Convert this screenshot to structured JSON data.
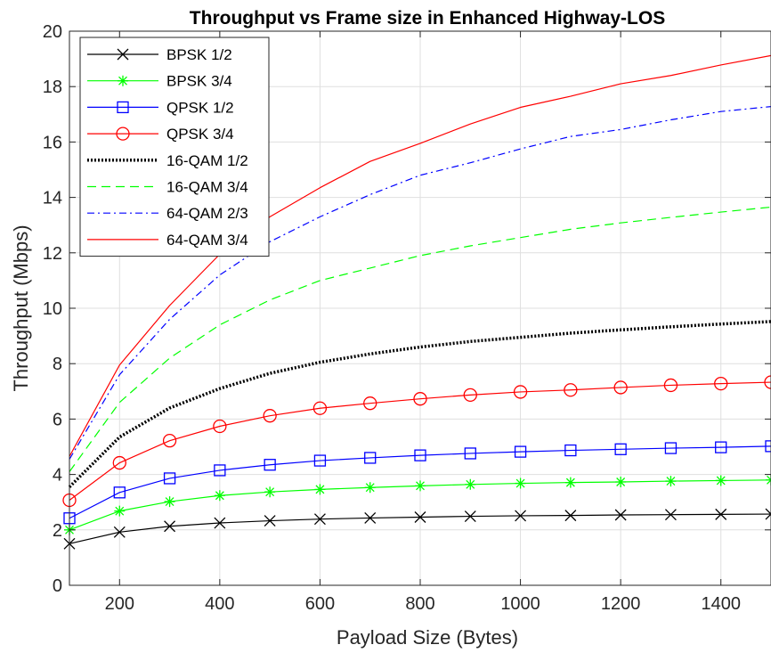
{
  "chart_data": {
    "type": "line",
    "title": "Throughput vs Frame size in Enhanced Highway-LOS",
    "xlabel": "Payload Size (Bytes)",
    "ylabel": "Throughput (Mbps)",
    "xlim": [
      100,
      1500
    ],
    "ylim": [
      0,
      20
    ],
    "xticks": [
      200,
      400,
      600,
      800,
      1000,
      1200,
      1400
    ],
    "yticks": [
      0,
      2,
      4,
      6,
      8,
      10,
      12,
      14,
      16,
      18,
      20
    ],
    "grid": true,
    "legend_position": "top-left",
    "x": [
      100,
      200,
      300,
      400,
      500,
      600,
      700,
      800,
      900,
      1000,
      1100,
      1200,
      1300,
      1400,
      1500
    ],
    "series": [
      {
        "name": "BPSK 1/2",
        "color": "#000000",
        "line": "solid",
        "marker": "x",
        "values": [
          1.5,
          1.92,
          2.13,
          2.25,
          2.33,
          2.39,
          2.43,
          2.46,
          2.49,
          2.51,
          2.52,
          2.54,
          2.55,
          2.56,
          2.57
        ]
      },
      {
        "name": "BPSK 3/4",
        "color": "#00ff00",
        "line": "solid",
        "marker": "asterisk",
        "values": [
          2.0,
          2.68,
          3.02,
          3.24,
          3.37,
          3.46,
          3.53,
          3.59,
          3.64,
          3.68,
          3.71,
          3.73,
          3.76,
          3.78,
          3.8
        ]
      },
      {
        "name": "QPSK 1/2",
        "color": "#0000ff",
        "line": "solid",
        "marker": "square",
        "values": [
          2.42,
          3.35,
          3.86,
          4.15,
          4.35,
          4.5,
          4.6,
          4.69,
          4.76,
          4.82,
          4.87,
          4.91,
          4.95,
          4.98,
          5.02
        ]
      },
      {
        "name": "QPSK 3/4",
        "color": "#ff0000",
        "line": "solid",
        "marker": "circle",
        "values": [
          3.07,
          4.42,
          5.22,
          5.74,
          6.12,
          6.39,
          6.57,
          6.73,
          6.87,
          6.98,
          7.05,
          7.14,
          7.22,
          7.28,
          7.33
        ]
      },
      {
        "name": "16-QAM 1/2",
        "color": "#000000",
        "line": "dotted",
        "marker": "none",
        "values": [
          3.55,
          5.35,
          6.4,
          7.1,
          7.65,
          8.05,
          8.35,
          8.6,
          8.8,
          8.95,
          9.1,
          9.22,
          9.33,
          9.43,
          9.52
        ]
      },
      {
        "name": "16-QAM 3/4",
        "color": "#00ff00",
        "line": "dashed",
        "marker": "none",
        "values": [
          4.1,
          6.6,
          8.2,
          9.4,
          10.3,
          11.0,
          11.45,
          11.9,
          12.25,
          12.55,
          12.85,
          13.08,
          13.28,
          13.47,
          13.65
        ]
      },
      {
        "name": "64-QAM 2/3",
        "color": "#0000ff",
        "line": "dashdot",
        "marker": "none",
        "values": [
          4.55,
          7.6,
          9.6,
          11.2,
          12.4,
          13.3,
          14.1,
          14.8,
          15.25,
          15.75,
          16.2,
          16.45,
          16.8,
          17.1,
          17.28
        ]
      },
      {
        "name": "64-QAM 3/4",
        "color": "#ff0000",
        "line": "solid",
        "marker": "none",
        "values": [
          4.65,
          7.95,
          10.1,
          11.95,
          13.3,
          14.35,
          15.3,
          15.95,
          16.65,
          17.25,
          17.65,
          18.1,
          18.4,
          18.78,
          19.12
        ]
      }
    ]
  }
}
